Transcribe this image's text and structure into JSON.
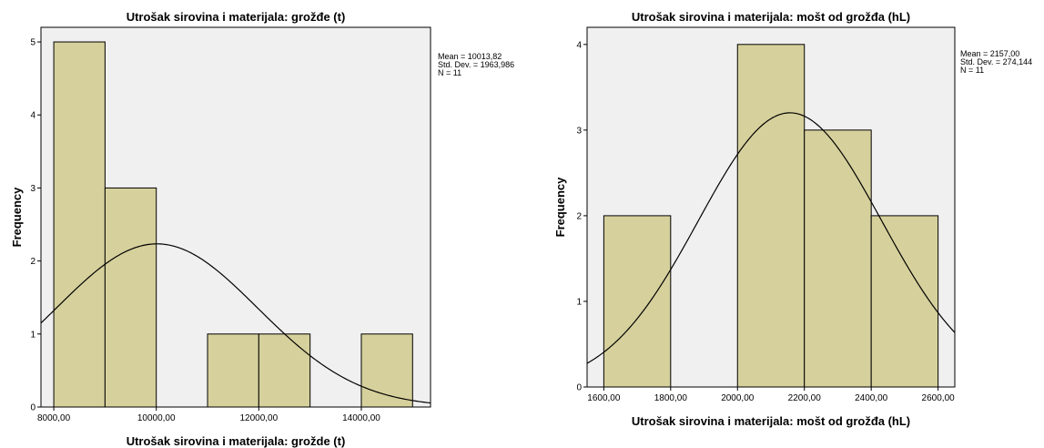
{
  "chart_data": [
    {
      "type": "bar",
      "title": "Utrošak sirovina i materijala: grožđe (t)",
      "xlabel": "Utrošak sirovina i materijala: grožde (t)",
      "ylabel": "Frequency",
      "xlim": [
        7750,
        15350
      ],
      "ylim": [
        0,
        5.2
      ],
      "xticks": [
        8000,
        10000,
        12000,
        14000
      ],
      "xtick_labels": [
        "8000,00",
        "10000,00",
        "12000,00",
        "14000,00"
      ],
      "yticks": [
        0,
        1,
        2,
        3,
        4,
        5
      ],
      "bin_edges": [
        8000,
        9000,
        10000,
        11000,
        12000,
        13000,
        14000,
        15000
      ],
      "counts": [
        5,
        3,
        0,
        1,
        1,
        0,
        1
      ],
      "stats": [
        "Mean = 10013,82",
        "Std. Dev. = 1963,986",
        "N = 11"
      ],
      "curve": {
        "type": "normal",
        "mean": 10013.82,
        "sd": 1963.986,
        "n": 11,
        "bin_width": 1000
      },
      "bar_color": "#d6d09c",
      "plot_background": "#f0f0f0"
    },
    {
      "type": "bar",
      "title": "Utrošak sirovina i materijala: mošt od grožđa (hL)",
      "xlabel": "Utrošak sirovina i materijala: mošt od grožđa (hL)",
      "ylabel": "Frequency",
      "xlim": [
        1550,
        2650
      ],
      "ylim": [
        0,
        4.2
      ],
      "xticks": [
        1600,
        1800,
        2000,
        2200,
        2400,
        2600
      ],
      "xtick_labels": [
        "1600,00",
        "1800,00",
        "2000,00",
        "2200,00",
        "2400,00",
        "2600,00"
      ],
      "yticks": [
        0,
        1,
        2,
        3,
        4
      ],
      "bin_edges": [
        1600,
        1800,
        2000,
        2200,
        2400,
        2600
      ],
      "counts": [
        2,
        0,
        4,
        3,
        2
      ],
      "stats": [
        "Mean = 2157,00",
        "Std. Dev. = 274,144",
        "N = 11"
      ],
      "curve": {
        "type": "normal",
        "mean": 2157.0,
        "sd": 274.144,
        "n": 11,
        "bin_width": 200
      },
      "bar_color": "#d6d09c",
      "plot_background": "#f0f0f0"
    }
  ]
}
